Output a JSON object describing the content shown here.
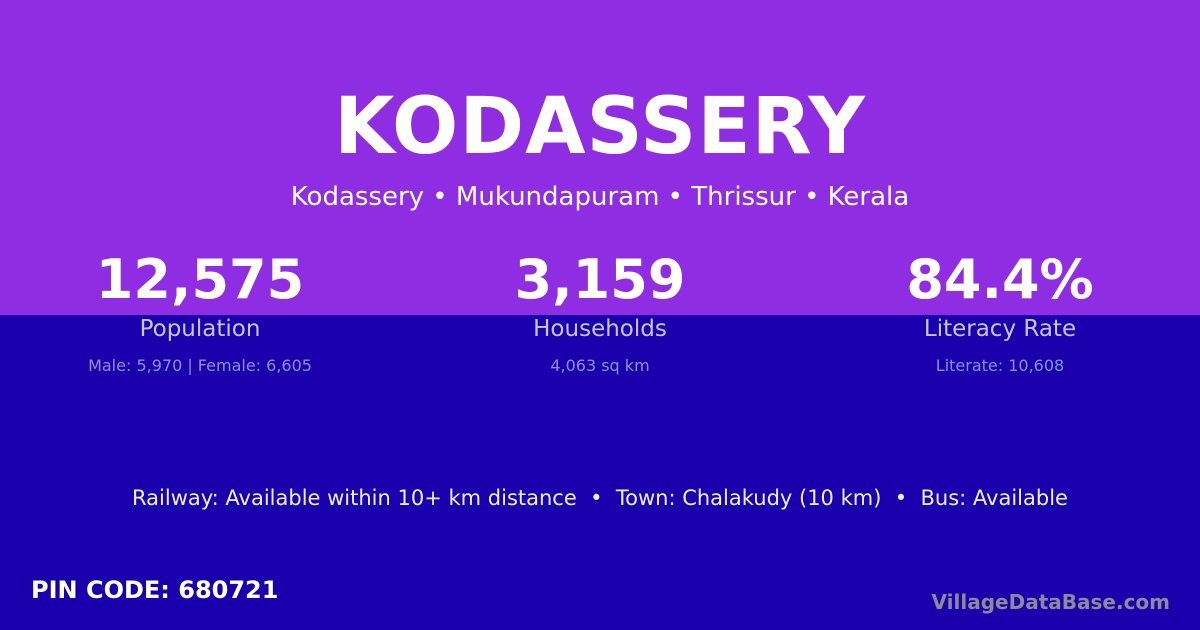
{
  "colors": {
    "top_band": "#8e2de2",
    "bottom_band": "#1a00ac"
  },
  "title": "KODASSERY",
  "subtitle": "Kodassery • Mukundapuram • Thrissur • Kerala",
  "stats": [
    {
      "value": "12,575",
      "label": "Population",
      "detail": "Male: 5,970 | Female: 6,605"
    },
    {
      "value": "3,159",
      "label": "Households",
      "detail": "4,063 sq km"
    },
    {
      "value": "84.4%",
      "label": "Literacy Rate",
      "detail": "Literate: 10,608"
    }
  ],
  "facts": "Railway: Available within 10+ km distance  •  Town: Chalakudy (10 km)  •  Bus: Available",
  "pin": "PIN CODE: 680721",
  "brand": "VillageDataBase.com"
}
